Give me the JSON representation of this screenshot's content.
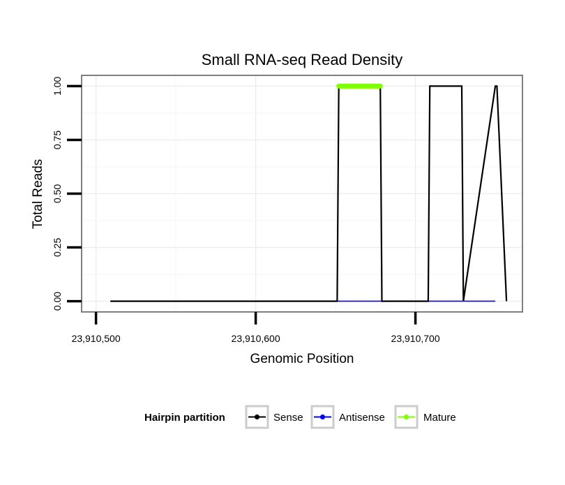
{
  "chart_data": {
    "type": "line",
    "title": "Small RNA-seq Read Density",
    "xlabel": "Genomic Position",
    "ylabel": "Total Reads",
    "xlim": [
      23910491,
      23910767
    ],
    "ylim": [
      -0.05,
      1.05
    ],
    "x_ticks": [
      23910500,
      23910600,
      23910700
    ],
    "x_tick_labels": [
      "23,910,500",
      "23,910,600",
      "23,910,700"
    ],
    "y_ticks": [
      0,
      0.25,
      0.5,
      0.75,
      1.0
    ],
    "y_tick_labels": [
      "0.00",
      "0.25",
      "0.50",
      "0.75",
      "1.00"
    ],
    "grid": true,
    "legend": {
      "title": "Hairpin partition",
      "position": "bottom",
      "entries": [
        "Sense",
        "Antisense",
        "Mature"
      ]
    },
    "colors": {
      "Sense": "#000000",
      "Antisense": "#0000ff",
      "Mature": "#7fff00"
    },
    "series": [
      {
        "name": "Sense",
        "x": [
          23910509,
          23910651,
          23910652,
          23910678,
          23910679,
          23910708,
          23910709,
          23910729,
          23910730,
          23910750,
          23910751,
          23910757
        ],
        "y": [
          0,
          0,
          1,
          1,
          0,
          0,
          1,
          1,
          0,
          1,
          1,
          0
        ]
      },
      {
        "name": "Antisense",
        "x": [
          23910651,
          23910679,
          23910708,
          23910750
        ],
        "y": [
          0,
          0,
          0,
          0
        ]
      },
      {
        "name": "Mature",
        "x": [
          23910652,
          23910678
        ],
        "y": [
          1,
          1
        ]
      }
    ]
  }
}
